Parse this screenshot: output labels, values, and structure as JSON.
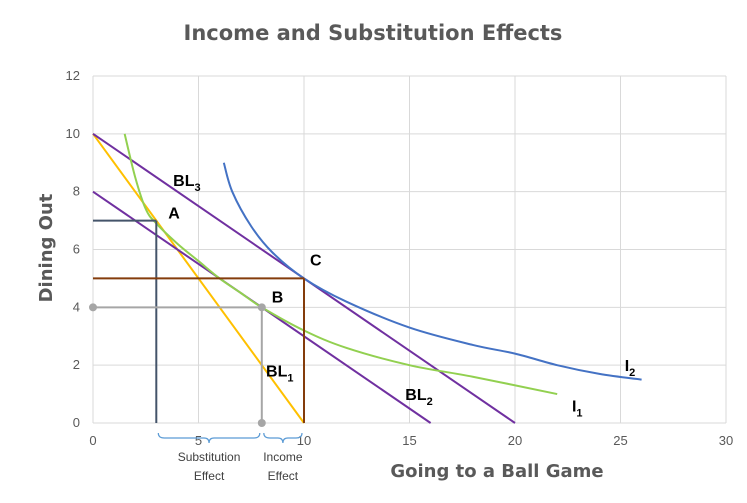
{
  "chart_data": {
    "type": "line",
    "title": "Income and Substitution Effects",
    "xlabel": "Going to a Ball Game",
    "ylabel": "Dining Out",
    "xlim": [
      0,
      30
    ],
    "ylim": [
      0,
      12
    ],
    "xticks": [
      0,
      5,
      10,
      15,
      20,
      25,
      30
    ],
    "yticks": [
      0,
      2,
      4,
      6,
      8,
      10,
      12
    ],
    "grid": true,
    "colors": {
      "BL1": "#ffc000",
      "BL2": "#7030a0",
      "BL3": "#7030a0",
      "I1": "#92d050",
      "I2": "#4472c4",
      "guideA": "#44546a",
      "guideB": "#a6a6a6",
      "guideC": "#843c0c",
      "brace": "#5b9bd5"
    },
    "series": [
      {
        "key": "BL1",
        "name": "BL",
        "sub": "1",
        "points": [
          [
            0,
            10
          ],
          [
            10,
            0
          ]
        ]
      },
      {
        "key": "BL2",
        "name": "BL",
        "sub": "2",
        "points": [
          [
            0,
            8
          ],
          [
            16,
            0
          ]
        ]
      },
      {
        "key": "BL3",
        "name": "BL",
        "sub": "3",
        "points": [
          [
            0,
            10
          ],
          [
            20,
            0
          ]
        ]
      },
      {
        "key": "I1",
        "name": "I",
        "sub": "1",
        "points": [
          [
            1.5,
            10
          ],
          [
            2,
            8.5
          ],
          [
            2.5,
            7.4
          ],
          [
            3,
            6.9
          ],
          [
            4,
            6.2
          ],
          [
            5,
            5.6
          ],
          [
            6,
            5.0
          ],
          [
            7,
            4.5
          ],
          [
            8,
            4.0
          ],
          [
            10,
            3.2
          ],
          [
            12,
            2.6
          ],
          [
            15,
            2.0
          ],
          [
            18,
            1.6
          ],
          [
            22,
            1.0
          ]
        ]
      },
      {
        "key": "I2",
        "name": "I",
        "sub": "2",
        "points": [
          [
            6.2,
            9.0
          ],
          [
            6.6,
            8.0
          ],
          [
            7.5,
            6.8
          ],
          [
            8.5,
            5.9
          ],
          [
            10,
            5.0
          ],
          [
            12,
            4.2
          ],
          [
            15,
            3.3
          ],
          [
            18,
            2.7
          ],
          [
            20,
            2.4
          ],
          [
            22,
            2.0
          ],
          [
            24,
            1.7
          ],
          [
            26,
            1.5
          ]
        ]
      }
    ],
    "guides": [
      {
        "key": "guideA",
        "point": [
          3,
          7
        ]
      },
      {
        "key": "guideB",
        "point": [
          8,
          4
        ]
      },
      {
        "key": "guideC",
        "point": [
          10,
          5
        ]
      }
    ],
    "points": [
      {
        "label": "A",
        "x": 3,
        "y": 7
      },
      {
        "label": "B",
        "x": 8,
        "y": 4
      },
      {
        "label": "C",
        "x": 10,
        "y": 5
      }
    ],
    "annotations": [
      {
        "name": "substitution-effect",
        "lines": [
          "Substitution",
          "Effect"
        ],
        "x_from": 3,
        "x_to": 8
      },
      {
        "name": "income-effect",
        "lines": [
          "Income",
          "Effect"
        ],
        "x_from": 8,
        "x_to": 10
      }
    ]
  }
}
